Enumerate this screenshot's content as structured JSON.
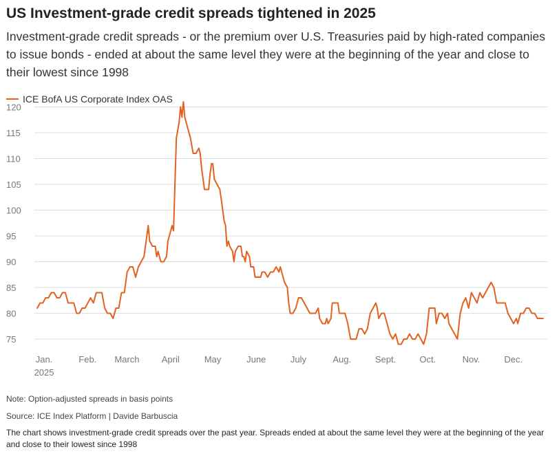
{
  "title": "US Investment-grade credit spreads tightened in 2025",
  "subtitle": "Investment-grade credit spreads - or the premium over U.S. Treasuries paid by high-rated companies to issue bonds - ended at about the same level they were at the beginning of the year and close to their lowest since 1998",
  "note": "Note: Option-adjusted spreads in basis points",
  "source": "Source: ICE Index Platform | Davide Barbuscia",
  "description": "The chart shows investment-grade credit spreads over the past year. Spreads ended at about the same level they were at the beginning of the year and close to their lowest since 1998",
  "colors": {
    "series": "#e3601e",
    "grid": "#dedede",
    "axis_text": "#777777"
  },
  "chart_data": {
    "type": "line",
    "title": "",
    "xlabel": "",
    "ylabel": "",
    "ylim": [
      73,
      121
    ],
    "xlim": [
      0,
      365
    ],
    "yticks": [
      120,
      115,
      110,
      105,
      100,
      95,
      90,
      85,
      80,
      75
    ],
    "xticks": [
      {
        "label": "Jan.",
        "sublabel": "2025",
        "day": 1
      },
      {
        "label": "Feb.",
        "day": 32
      },
      {
        "label": "March",
        "day": 60
      },
      {
        "label": "April",
        "day": 91
      },
      {
        "label": "May",
        "day": 121
      },
      {
        "label": "June",
        "day": 152
      },
      {
        "label": "July",
        "day": 182
      },
      {
        "label": "Aug.",
        "day": 213
      },
      {
        "label": "Sept.",
        "day": 244
      },
      {
        "label": "Oct.",
        "day": 274
      },
      {
        "label": "Nov.",
        "day": 305
      },
      {
        "label": "Dec.",
        "day": 335
      }
    ],
    "grid": true,
    "legend_position": "top-left",
    "series": [
      {
        "name": "ICE BofA US Corporate Index OAS",
        "points": [
          [
            2,
            81
          ],
          [
            4,
            82
          ],
          [
            6,
            82
          ],
          [
            8,
            83
          ],
          [
            10,
            83
          ],
          [
            12,
            84
          ],
          [
            14,
            84
          ],
          [
            16,
            83
          ],
          [
            18,
            83
          ],
          [
            20,
            84
          ],
          [
            22,
            84
          ],
          [
            24,
            82
          ],
          [
            26,
            82
          ],
          [
            28,
            82
          ],
          [
            30,
            80
          ],
          [
            32,
            80
          ],
          [
            34,
            81
          ],
          [
            36,
            81
          ],
          [
            38,
            82
          ],
          [
            40,
            83
          ],
          [
            42,
            82
          ],
          [
            44,
            84
          ],
          [
            46,
            84
          ],
          [
            48,
            84
          ],
          [
            50,
            81
          ],
          [
            52,
            80
          ],
          [
            54,
            80
          ],
          [
            56,
            79
          ],
          [
            58,
            81
          ],
          [
            60,
            81
          ],
          [
            62,
            84
          ],
          [
            64,
            84
          ],
          [
            66,
            88
          ],
          [
            68,
            89
          ],
          [
            70,
            89
          ],
          [
            72,
            87
          ],
          [
            74,
            89
          ],
          [
            76,
            90
          ],
          [
            78,
            91
          ],
          [
            80,
            95
          ],
          [
            81,
            97
          ],
          [
            82,
            94
          ],
          [
            84,
            93
          ],
          [
            86,
            93
          ],
          [
            87,
            91
          ],
          [
            88,
            92
          ],
          [
            90,
            90
          ],
          [
            92,
            90
          ],
          [
            94,
            91
          ],
          [
            95,
            94
          ],
          [
            97,
            96
          ],
          [
            98,
            97
          ],
          [
            99,
            96
          ],
          [
            100,
            105
          ],
          [
            101,
            114
          ],
          [
            103,
            117
          ],
          [
            104,
            120
          ],
          [
            105,
            118
          ],
          [
            106,
            121
          ],
          [
            107,
            118
          ],
          [
            109,
            116
          ],
          [
            111,
            114
          ],
          [
            113,
            111
          ],
          [
            115,
            111
          ],
          [
            117,
            112
          ],
          [
            118,
            111
          ],
          [
            119,
            108
          ],
          [
            121,
            104
          ],
          [
            123,
            104
          ],
          [
            124,
            104
          ],
          [
            125,
            107
          ],
          [
            126,
            109
          ],
          [
            127,
            109
          ],
          [
            128,
            106
          ],
          [
            130,
            105
          ],
          [
            132,
            104
          ],
          [
            133,
            102
          ],
          [
            134,
            100
          ],
          [
            135,
            98
          ],
          [
            136,
            97
          ],
          [
            137,
            93
          ],
          [
            138,
            94
          ],
          [
            139,
            93
          ],
          [
            141,
            92
          ],
          [
            142,
            90
          ],
          [
            143,
            92
          ],
          [
            145,
            93
          ],
          [
            147,
            93
          ],
          [
            148,
            91
          ],
          [
            149,
            91
          ],
          [
            150,
            90
          ],
          [
            151,
            92
          ],
          [
            153,
            91
          ],
          [
            154,
            89
          ],
          [
            156,
            89
          ],
          [
            157,
            87
          ],
          [
            159,
            87
          ],
          [
            161,
            87
          ],
          [
            162,
            88
          ],
          [
            164,
            88
          ],
          [
            166,
            87
          ],
          [
            168,
            88
          ],
          [
            170,
            88
          ],
          [
            172,
            89
          ],
          [
            174,
            88
          ],
          [
            175,
            89
          ],
          [
            176,
            88
          ],
          [
            178,
            86
          ],
          [
            180,
            85
          ],
          [
            181,
            82
          ],
          [
            182,
            80
          ],
          [
            184,
            80
          ],
          [
            186,
            81
          ],
          [
            188,
            83
          ],
          [
            190,
            83
          ],
          [
            192,
            82
          ],
          [
            194,
            81
          ],
          [
            196,
            80
          ],
          [
            198,
            80
          ],
          [
            200,
            80
          ],
          [
            202,
            81
          ],
          [
            203,
            79
          ],
          [
            205,
            78
          ],
          [
            207,
            78
          ],
          [
            208,
            79
          ],
          [
            209,
            78
          ],
          [
            211,
            79
          ],
          [
            212,
            82
          ],
          [
            214,
            82
          ],
          [
            216,
            82
          ],
          [
            217,
            80
          ],
          [
            219,
            80
          ],
          [
            221,
            80
          ],
          [
            223,
            78
          ],
          [
            225,
            75
          ],
          [
            227,
            75
          ],
          [
            229,
            75
          ],
          [
            231,
            77
          ],
          [
            233,
            77
          ],
          [
            235,
            76
          ],
          [
            237,
            77
          ],
          [
            239,
            80
          ],
          [
            241,
            81
          ],
          [
            243,
            82
          ],
          [
            244,
            81
          ],
          [
            245,
            79
          ],
          [
            247,
            80
          ],
          [
            249,
            80
          ],
          [
            251,
            78
          ],
          [
            253,
            76
          ],
          [
            255,
            75
          ],
          [
            257,
            76
          ],
          [
            259,
            74
          ],
          [
            261,
            74
          ],
          [
            263,
            75
          ],
          [
            265,
            75
          ],
          [
            267,
            76
          ],
          [
            269,
            75
          ],
          [
            271,
            75
          ],
          [
            273,
            76
          ],
          [
            275,
            75
          ],
          [
            277,
            74
          ],
          [
            279,
            76
          ],
          [
            281,
            81
          ],
          [
            283,
            81
          ],
          [
            285,
            81
          ],
          [
            286,
            78
          ],
          [
            288,
            80
          ],
          [
            290,
            80
          ],
          [
            292,
            79
          ],
          [
            294,
            80
          ],
          [
            295,
            78
          ],
          [
            297,
            77
          ],
          [
            299,
            76
          ],
          [
            301,
            75
          ],
          [
            303,
            80
          ],
          [
            305,
            82
          ],
          [
            307,
            83
          ],
          [
            309,
            81
          ],
          [
            311,
            84
          ],
          [
            313,
            83
          ],
          [
            315,
            82
          ],
          [
            317,
            84
          ],
          [
            319,
            83
          ],
          [
            321,
            84
          ],
          [
            323,
            85
          ],
          [
            325,
            86
          ],
          [
            327,
            85
          ],
          [
            329,
            82
          ],
          [
            331,
            82
          ],
          [
            333,
            82
          ],
          [
            335,
            82
          ],
          [
            337,
            80
          ],
          [
            339,
            79
          ],
          [
            341,
            78
          ],
          [
            343,
            79
          ],
          [
            344,
            78
          ],
          [
            346,
            80
          ],
          [
            348,
            80
          ],
          [
            350,
            81
          ],
          [
            352,
            81
          ],
          [
            354,
            80
          ],
          [
            356,
            80
          ],
          [
            358,
            79
          ],
          [
            360,
            79
          ],
          [
            362,
            79
          ]
        ]
      }
    ]
  }
}
